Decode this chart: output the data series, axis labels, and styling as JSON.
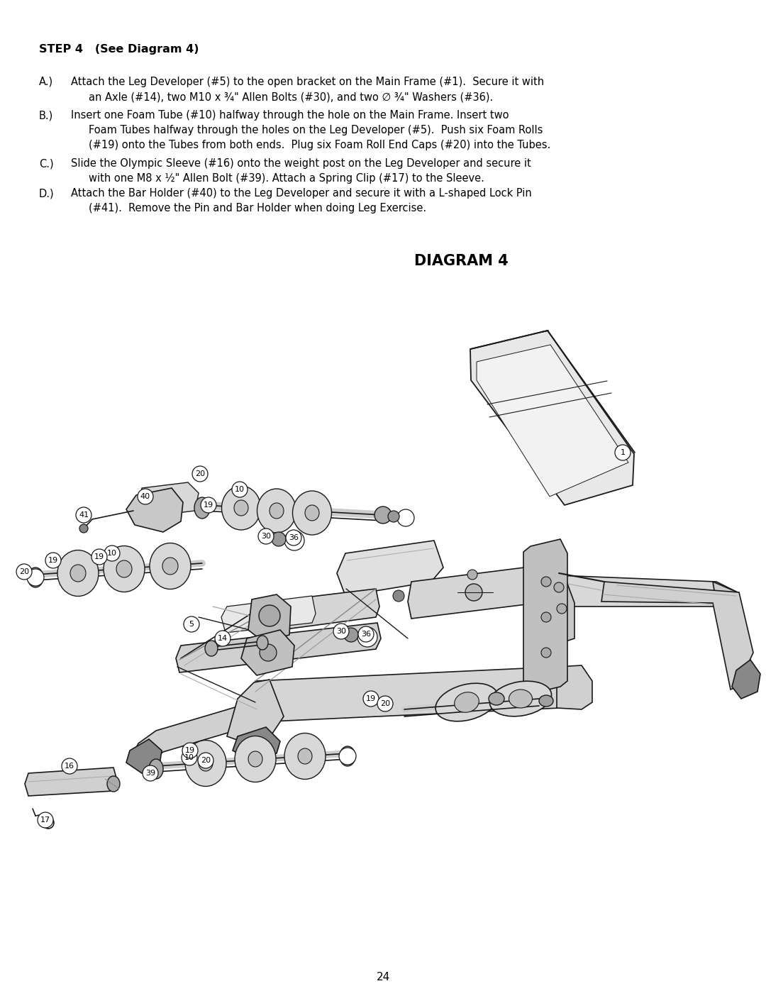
{
  "page_number": "24",
  "bg": "#ffffff",
  "fg": "#000000",
  "step_title": "STEP 4   (See Diagram 4)",
  "diagram_title": "DIAGRAM 4",
  "para_A_label": "A.)",
  "para_A_line1": "Attach the Leg Developer (#5) to the open bracket on the Main Frame (#1).  Secure it with",
  "para_A_line2": "an Axle (#14), two M10 x ¾\" Allen Bolts (#30), and two ∅ ¾\" Washers (#36).",
  "para_B_label": "B.)",
  "para_B_line1": "Insert one Foam Tube (#10) halfway through the hole on the Main Frame. Insert two",
  "para_B_line2": "Foam Tubes halfway through the holes on the Leg Developer (#5).  Push six Foam Rolls",
  "para_B_line3": "(#19) onto the Tubes from both ends.  Plug six Foam Roll End Caps (#20) into the Tubes.",
  "para_C_label": "C.)",
  "para_C_line1": "Slide the Olympic Sleeve (#16) onto the weight post on the Leg Developer and secure it",
  "para_C_line2": "with one M8 x ½\" Allen Bolt (#39). Attach a Spring Clip (#17) to the Sleeve.",
  "para_D_label": "D.)",
  "para_D_line1": "Attach the Bar Holder (#40) to the Leg Developer and secure it with a L-shaped Lock Pin",
  "para_D_line2": "(#41).  Remove the Pin and Bar Holder when doing Leg Exercise."
}
